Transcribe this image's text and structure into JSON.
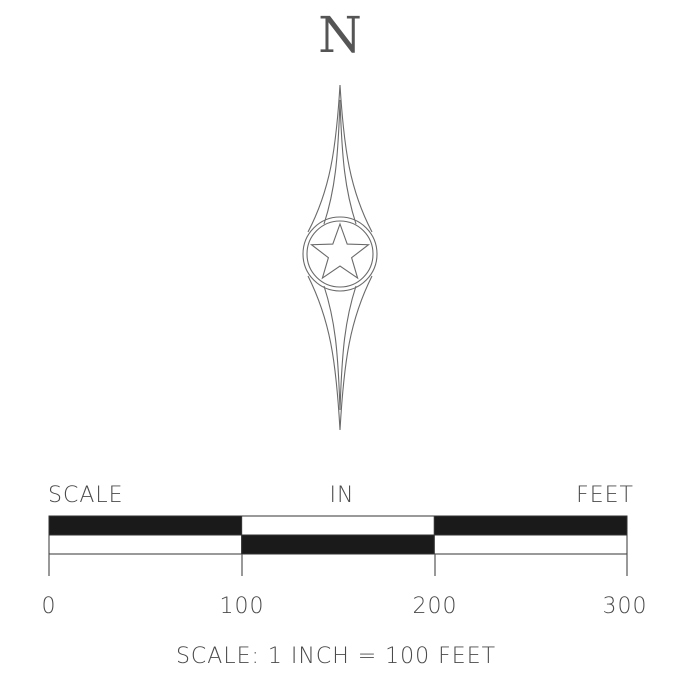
{
  "north_arrow": {
    "letter": "N"
  },
  "scale_bar": {
    "header_left": "SCALE",
    "header_center": "IN",
    "header_right": "FEET",
    "segments_top": [
      "black",
      "white",
      "black"
    ],
    "segments_bottom": [
      "white",
      "black",
      "white"
    ],
    "ticks": [
      "0",
      "100",
      "200",
      "300"
    ],
    "caption": "SCALE: 1 INCH = 100 FEET"
  },
  "colors": {
    "ink": "#1a1a1a",
    "line": "#555555",
    "text": "#4a4a4a"
  }
}
